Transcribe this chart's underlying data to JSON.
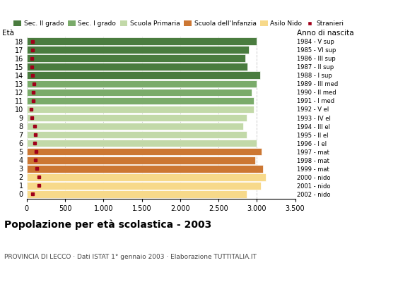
{
  "ages": [
    18,
    17,
    16,
    15,
    14,
    13,
    12,
    11,
    10,
    9,
    8,
    7,
    6,
    5,
    4,
    3,
    2,
    1,
    0
  ],
  "bar_values": [
    3000,
    2900,
    2850,
    2880,
    3040,
    3000,
    2930,
    2960,
    2960,
    2870,
    2820,
    2870,
    3000,
    3060,
    2980,
    3080,
    3120,
    3050,
    2870
  ],
  "stranieri_values": [
    75,
    75,
    65,
    65,
    75,
    95,
    85,
    90,
    55,
    65,
    105,
    115,
    105,
    125,
    115,
    135,
    155,
    155,
    75
  ],
  "bar_colors": [
    "#4a7c3f",
    "#4a7c3f",
    "#4a7c3f",
    "#4a7c3f",
    "#4a7c3f",
    "#7aab6a",
    "#7aab6a",
    "#7aab6a",
    "#c2d9a8",
    "#c2d9a8",
    "#c2d9a8",
    "#c2d9a8",
    "#c2d9a8",
    "#cc7733",
    "#cc7733",
    "#cc7733",
    "#f7d98a",
    "#f7d98a",
    "#f7d98a"
  ],
  "right_labels": [
    "1984 - V sup",
    "1985 - VI sup",
    "1986 - III sup",
    "1987 - II sup",
    "1988 - I sup",
    "1989 - III med",
    "1990 - II med",
    "1991 - I med",
    "1992 - V el",
    "1993 - IV el",
    "1994 - III el",
    "1995 - II el",
    "1996 - I el",
    "1997 - mat",
    "1998 - mat",
    "1999 - mat",
    "2000 - nido",
    "2001 - nido",
    "2002 - nido"
  ],
  "legend_labels": [
    "Sec. II grado",
    "Sec. I grado",
    "Scuola Primaria",
    "Scuola dell'Infanzia",
    "Asilo Nido",
    "Stranieri"
  ],
  "legend_colors": [
    "#4a7c3f",
    "#7aab6a",
    "#c2d9a8",
    "#cc7733",
    "#f7d98a",
    "#a0001a"
  ],
  "title": "Popolazione per età scolastica - 2003",
  "subtitle": "PROVINCIA DI LECCO · Dati ISTAT 1° gennaio 2003 · Elaborazione TUTTITALIA.IT",
  "xlabel_eta": "Età",
  "xlabel_anno": "Anno di nascita",
  "xlim": [
    0,
    3500
  ],
  "xticks": [
    0,
    500,
    1000,
    1500,
    2000,
    2500,
    3000,
    3500
  ],
  "background_color": "#ffffff",
  "grid_color": "#cccccc",
  "bar_height": 0.88,
  "stranieri_color": "#a0001a"
}
